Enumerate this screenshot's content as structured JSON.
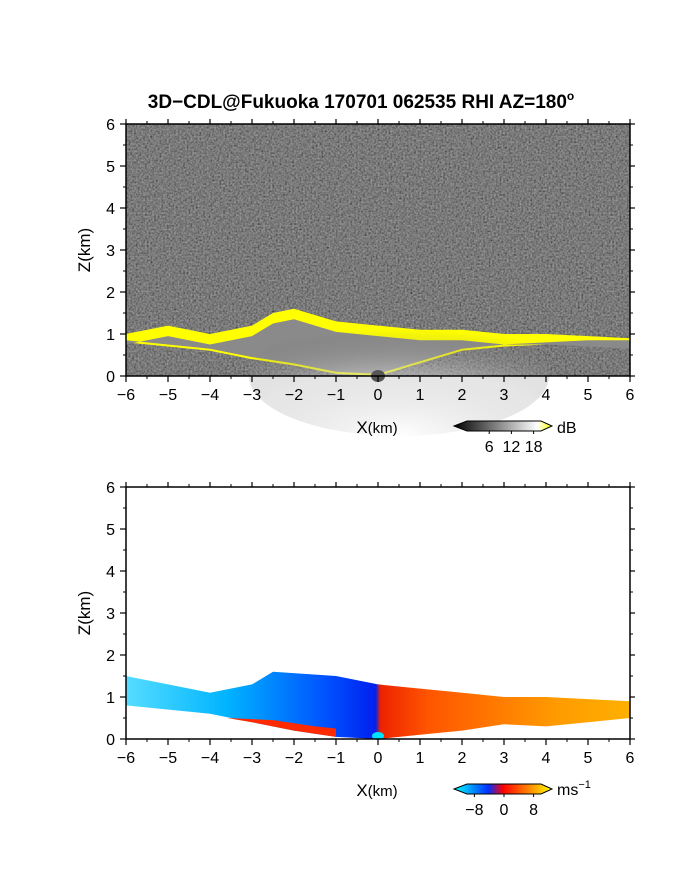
{
  "title": "3D−CDL@Fukuoka 170701 062535 RHI AZ=180",
  "title_degree": "o",
  "chart_data": [
    {
      "type": "heatmap",
      "panel": "top",
      "quantity": "backscatter intensity",
      "xlabel_main": "X",
      "xlabel_unit": "(km)",
      "ylabel_main": "Z",
      "ylabel_unit": "(km)",
      "xlim": [
        -6,
        6
      ],
      "ylim": [
        0,
        6
      ],
      "xticks": [
        "−6",
        "−5",
        "−4",
        "−3",
        "−2",
        "−1",
        "0",
        "1",
        "2",
        "3",
        "4",
        "5",
        "6"
      ],
      "yticks": [
        "0",
        "1",
        "2",
        "3",
        "4",
        "5",
        "6"
      ],
      "colorbar": {
        "unit": "dB",
        "ticks": [
          "6",
          "12",
          "18"
        ],
        "tick_values": [
          6,
          12,
          18
        ],
        "range": [
          0,
          20
        ],
        "colors": [
          "#000000",
          "#ffffff",
          "#ffff00"
        ]
      },
      "layer_top_km": [
        [
          -6,
          1.0
        ],
        [
          -5,
          1.2
        ],
        [
          -4,
          1.0
        ],
        [
          -3,
          1.2
        ],
        [
          -2.5,
          1.5
        ],
        [
          -2,
          1.6
        ],
        [
          -1,
          1.3
        ],
        [
          0,
          1.2
        ],
        [
          1,
          1.1
        ],
        [
          2,
          1.1
        ],
        [
          3,
          1.0
        ],
        [
          4,
          1.0
        ],
        [
          5,
          0.95
        ],
        [
          6,
          0.9
        ]
      ],
      "layer_base_km": [
        [
          -6,
          0.8
        ],
        [
          -4,
          0.6
        ],
        [
          -3,
          0.4
        ],
        [
          -2,
          0.25
        ],
        [
          -1,
          0.05
        ],
        [
          0,
          0
        ],
        [
          1,
          0.3
        ],
        [
          2,
          0.6
        ],
        [
          3,
          0.7
        ],
        [
          4,
          0.75
        ],
        [
          5,
          0.8
        ],
        [
          6,
          0.8
        ]
      ],
      "grid": false
    },
    {
      "type": "heatmap",
      "panel": "bottom",
      "quantity": "radial velocity",
      "xlabel_main": "X",
      "xlabel_unit": "(km)",
      "ylabel_main": "Z",
      "ylabel_unit": "(km)",
      "xlim": [
        -6,
        6
      ],
      "ylim": [
        0,
        6
      ],
      "xticks": [
        "−6",
        "−5",
        "−4",
        "−3",
        "−2",
        "−1",
        "0",
        "1",
        "2",
        "3",
        "4",
        "5",
        "6"
      ],
      "yticks": [
        "0",
        "1",
        "2",
        "3",
        "4",
        "5",
        "6"
      ],
      "colorbar": {
        "unit": "ms",
        "unit_exp": "−1",
        "ticks": [
          "−8",
          "0",
          "8"
        ],
        "tick_values": [
          -8,
          0,
          8
        ],
        "range": [
          -10,
          10
        ],
        "colors": [
          "#00ffff",
          "#0030ff",
          "#ff0000",
          "#ffff00"
        ]
      },
      "layer_top_km": [
        [
          -6,
          1.5
        ],
        [
          -5,
          1.3
        ],
        [
          -4,
          1.1
        ],
        [
          -3,
          1.3
        ],
        [
          -2.5,
          1.6
        ],
        [
          -1,
          1.5
        ],
        [
          0,
          1.3
        ],
        [
          1,
          1.2
        ],
        [
          2,
          1.1
        ],
        [
          3,
          1.0
        ],
        [
          4,
          1.0
        ],
        [
          5,
          0.95
        ],
        [
          6,
          0.9
        ]
      ],
      "layer_base_km": [
        [
          -6,
          0.8
        ],
        [
          -4,
          0.6
        ],
        [
          -3,
          0.4
        ],
        [
          -2,
          0.2
        ],
        [
          -1,
          0.05
        ],
        [
          0,
          0
        ],
        [
          1,
          0.1
        ],
        [
          2,
          0.2
        ],
        [
          3,
          0.35
        ],
        [
          4,
          0.3
        ],
        [
          5,
          0.4
        ],
        [
          6,
          0.5
        ]
      ],
      "velocity_sign": "negative (blue) for X<0, positive (red/orange) for X>0",
      "grid": false
    }
  ]
}
